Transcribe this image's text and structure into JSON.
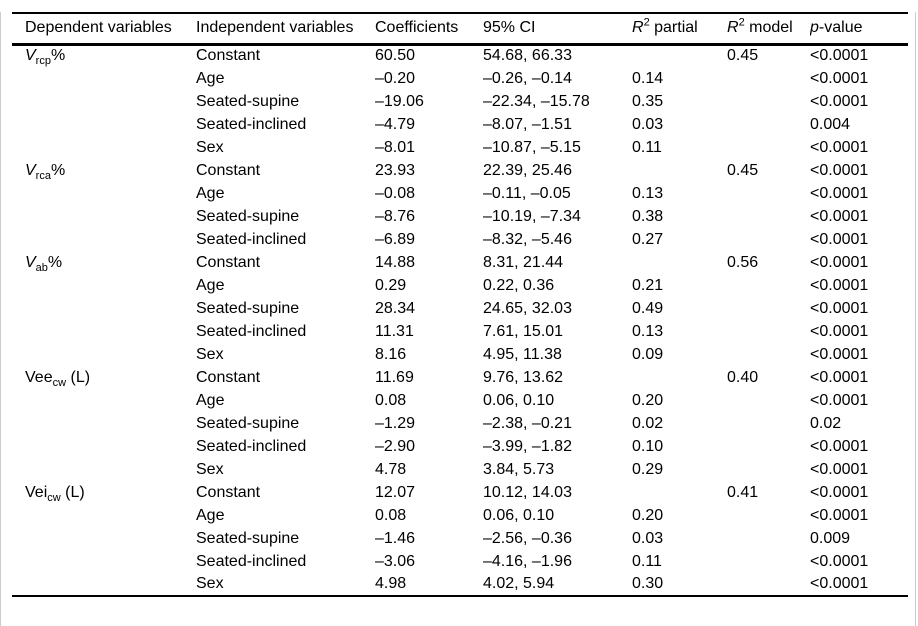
{
  "page": {
    "background": "#ffffff",
    "text_color": "#000000",
    "rule_color": "#000000",
    "edge_hairline_color": "#cccccc"
  },
  "table": {
    "headers": [
      {
        "id": "dependent-variables",
        "text": "Dependent variables"
      },
      {
        "id": "independent-variables",
        "text": "Independent variables"
      },
      {
        "id": "coefficients",
        "text": "Coefficients"
      },
      {
        "id": "ci",
        "text": "95% CI"
      },
      {
        "id": "r2-partial",
        "italic": "R",
        "sup": "2",
        "text": " partial"
      },
      {
        "id": "r2-model",
        "italic": "R",
        "sup": "2",
        "text": " model"
      },
      {
        "id": "p-value",
        "italic": "p",
        "text": "-value"
      }
    ],
    "groups": [
      {
        "dependent": {
          "main": "V",
          "main_italic": true,
          "sub": "rcp",
          "suffix": "%"
        },
        "rows": [
          {
            "independent": "Constant",
            "coefficient": "60.50",
            "ci": "54.68, 66.33",
            "r2_partial": "",
            "r2_model": "0.45",
            "p_value": "<0.0001"
          },
          {
            "independent": "Age",
            "coefficient": "–0.20",
            "ci": "–0.26, –0.14",
            "r2_partial": "0.14",
            "r2_model": "",
            "p_value": "<0.0001"
          },
          {
            "independent": "Seated-supine",
            "coefficient": "–19.06",
            "ci": "–22.34, –15.78",
            "r2_partial": "0.35",
            "r2_model": "",
            "p_value": "<0.0001"
          },
          {
            "independent": "Seated-inclined",
            "coefficient": "–4.79",
            "ci": "–8.07, –1.51",
            "r2_partial": "0.03",
            "r2_model": "",
            "p_value": "0.004"
          },
          {
            "independent": "Sex",
            "coefficient": "–8.01",
            "ci": "–10.87, –5.15",
            "r2_partial": "0.11",
            "r2_model": "",
            "p_value": "<0.0001"
          }
        ]
      },
      {
        "dependent": {
          "main": "V",
          "main_italic": true,
          "sub": "rca",
          "suffix": "%"
        },
        "rows": [
          {
            "independent": "Constant",
            "coefficient": "23.93",
            "ci": "22.39, 25.46",
            "r2_partial": "",
            "r2_model": "0.45",
            "p_value": "<0.0001"
          },
          {
            "independent": "Age",
            "coefficient": "–0.08",
            "ci": "–0.11, –0.05",
            "r2_partial": "0.13",
            "r2_model": "",
            "p_value": "<0.0001"
          },
          {
            "independent": "Seated-supine",
            "coefficient": "–8.76",
            "ci": "–10.19, –7.34",
            "r2_partial": "0.38",
            "r2_model": "",
            "p_value": "<0.0001"
          },
          {
            "independent": "Seated-inclined",
            "coefficient": "–6.89",
            "ci": "–8.32, –5.46",
            "r2_partial": "0.27",
            "r2_model": "",
            "p_value": "<0.0001"
          }
        ]
      },
      {
        "dependent": {
          "main": "V",
          "main_italic": true,
          "sub": "ab",
          "suffix": "%"
        },
        "rows": [
          {
            "independent": "Constant",
            "coefficient": "14.88",
            "ci": "8.31, 21.44",
            "r2_partial": "",
            "r2_model": "0.56",
            "p_value": "<0.0001"
          },
          {
            "independent": "Age",
            "coefficient": "0.29",
            "ci": "0.22, 0.36",
            "r2_partial": "0.21",
            "r2_model": "",
            "p_value": "<0.0001"
          },
          {
            "independent": "Seated-supine",
            "coefficient": "28.34",
            "ci": "24.65, 32.03",
            "r2_partial": "0.49",
            "r2_model": "",
            "p_value": "<0.0001"
          },
          {
            "independent": "Seated-inclined",
            "coefficient": "11.31",
            "ci": "7.61, 15.01",
            "r2_partial": "0.13",
            "r2_model": "",
            "p_value": "<0.0001"
          },
          {
            "independent": "Sex",
            "coefficient": "8.16",
            "ci": "4.95, 11.38",
            "r2_partial": "0.09",
            "r2_model": "",
            "p_value": "<0.0001"
          }
        ]
      },
      {
        "dependent": {
          "main": "Vee",
          "main_italic": false,
          "sub": "cw",
          "suffix": " (L)"
        },
        "rows": [
          {
            "independent": "Constant",
            "coefficient": "11.69",
            "ci": "9.76, 13.62",
            "r2_partial": "",
            "r2_model": "0.40",
            "p_value": "<0.0001"
          },
          {
            "independent": "Age",
            "coefficient": "0.08",
            "ci": "0.06, 0.10",
            "r2_partial": "0.20",
            "r2_model": "",
            "p_value": "<0.0001"
          },
          {
            "independent": "Seated-supine",
            "coefficient": "–1.29",
            "ci": "–2.38, –0.21",
            "r2_partial": "0.02",
            "r2_model": "",
            "p_value": "0.02"
          },
          {
            "independent": "Seated-inclined",
            "coefficient": "–2.90",
            "ci": "–3.99, –1.82",
            "r2_partial": "0.10",
            "r2_model": "",
            "p_value": "<0.0001"
          },
          {
            "independent": "Sex",
            "coefficient": "4.78",
            "ci": "3.84, 5.73",
            "r2_partial": "0.29",
            "r2_model": "",
            "p_value": "<0.0001"
          }
        ]
      },
      {
        "dependent": {
          "main": "Vei",
          "main_italic": false,
          "sub": "cw",
          "suffix": " (L)"
        },
        "rows": [
          {
            "independent": "Constant",
            "coefficient": "12.07",
            "ci": "10.12, 14.03",
            "r2_partial": "",
            "r2_model": "0.41",
            "p_value": "<0.0001"
          },
          {
            "independent": "Age",
            "coefficient": "0.08",
            "ci": "0.06, 0.10",
            "r2_partial": "0.20",
            "r2_model": "",
            "p_value": "<0.0001"
          },
          {
            "independent": "Seated-supine",
            "coefficient": "–1.46",
            "ci": "–2.56, –0.36",
            "r2_partial": "0.03",
            "r2_model": "",
            "p_value": "0.009"
          },
          {
            "independent": "Seated-inclined",
            "coefficient": "–3.06",
            "ci": "–4.16, –1.96",
            "r2_partial": "0.11",
            "r2_model": "",
            "p_value": "<0.0001"
          },
          {
            "independent": "Sex",
            "coefficient": "4.98",
            "ci": "4.02, 5.94",
            "r2_partial": "0.30",
            "r2_model": "",
            "p_value": "<0.0001"
          }
        ]
      }
    ]
  }
}
